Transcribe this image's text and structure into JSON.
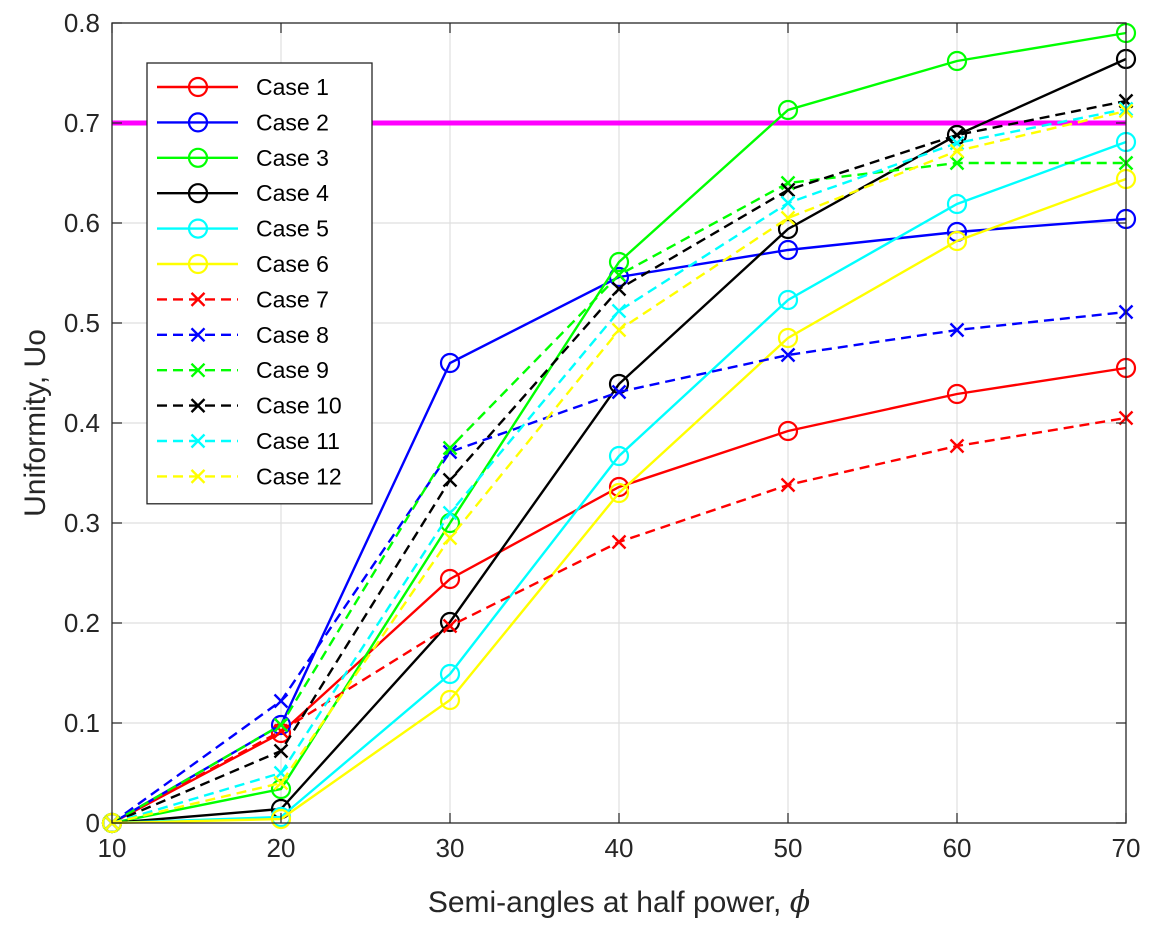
{
  "chart_data": {
    "type": "line",
    "xlabel": "Semi-angles at half power, ",
    "xlabel_symbol": "ϕ",
    "ylabel": "Uniformity, Uo",
    "xlim": [
      10,
      70
    ],
    "ylim": [
      0,
      0.8
    ],
    "xticks": [
      10,
      20,
      30,
      40,
      50,
      60,
      70
    ],
    "yticks": [
      0,
      0.1,
      0.2,
      0.3,
      0.4,
      0.5,
      0.6,
      0.7,
      0.8
    ],
    "xtick_labels": [
      "10",
      "20",
      "30",
      "40",
      "50",
      "60",
      "70"
    ],
    "ytick_labels": [
      "0",
      "0.1",
      "0.2",
      "0.3",
      "0.4",
      "0.5",
      "0.6",
      "0.7",
      "0.8"
    ],
    "grid": true,
    "legend_position": "top-left",
    "x": [
      10,
      20,
      30,
      40,
      50,
      60,
      70
    ],
    "reference_line": {
      "y": 0.7,
      "color": "#ff00ff"
    },
    "series": [
      {
        "name": "Case 1",
        "color": "#ff0000",
        "dash": "solid",
        "marker": "circle",
        "values": [
          0,
          0.09,
          0.244,
          0.336,
          0.392,
          0.429,
          0.455
        ]
      },
      {
        "name": "Case 2",
        "color": "#0000ff",
        "dash": "solid",
        "marker": "circle",
        "values": [
          0,
          0.098,
          0.46,
          0.546,
          0.573,
          0.591,
          0.604
        ]
      },
      {
        "name": "Case 3",
        "color": "#00ff00",
        "dash": "solid",
        "marker": "circle",
        "values": [
          0,
          0.034,
          0.3,
          0.561,
          0.713,
          0.762,
          0.79
        ]
      },
      {
        "name": "Case 4",
        "color": "#000000",
        "dash": "solid",
        "marker": "circle",
        "values": [
          0,
          0.014,
          0.201,
          0.439,
          0.594,
          0.688,
          0.764
        ]
      },
      {
        "name": "Case 5",
        "color": "#00ffff",
        "dash": "solid",
        "marker": "circle",
        "values": [
          0,
          0.006,
          0.149,
          0.367,
          0.523,
          0.619,
          0.681
        ]
      },
      {
        "name": "Case 6",
        "color": "#ffff00",
        "dash": "solid",
        "marker": "circle",
        "values": [
          0,
          0.004,
          0.123,
          0.33,
          0.485,
          0.582,
          0.644
        ]
      },
      {
        "name": "Case 7",
        "color": "#ff0000",
        "dash": "dashed",
        "marker": "x",
        "values": [
          0,
          0.092,
          0.197,
          0.281,
          0.338,
          0.377,
          0.405
        ]
      },
      {
        "name": "Case 8",
        "color": "#0000ff",
        "dash": "dashed",
        "marker": "x",
        "values": [
          0,
          0.122,
          0.371,
          0.431,
          0.468,
          0.493,
          0.511
        ]
      },
      {
        "name": "Case 9",
        "color": "#00ff00",
        "dash": "dashed",
        "marker": "x",
        "values": [
          0,
          0.098,
          0.375,
          0.548,
          0.64,
          0.66,
          0.66
        ]
      },
      {
        "name": "Case 10",
        "color": "#000000",
        "dash": "dashed",
        "marker": "x",
        "values": [
          0,
          0.072,
          0.343,
          0.534,
          0.633,
          0.688,
          0.722
        ]
      },
      {
        "name": "Case 11",
        "color": "#00ffff",
        "dash": "dashed",
        "marker": "x",
        "values": [
          0,
          0.05,
          0.31,
          0.512,
          0.62,
          0.68,
          0.714
        ]
      },
      {
        "name": "Case 12",
        "color": "#ffff00",
        "dash": "dashed",
        "marker": "x",
        "values": [
          0,
          0.04,
          0.285,
          0.493,
          0.605,
          0.672,
          0.712
        ]
      }
    ]
  }
}
